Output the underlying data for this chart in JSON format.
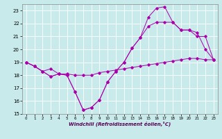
{
  "xlabel": "Windchill (Refroidissement éolien,°C)",
  "bg_color": "#c8eaea",
  "line_color": "#aa00aa",
  "grid_color": "#ffffff",
  "xlim": [
    -0.5,
    23.5
  ],
  "ylim": [
    15,
    23.5
  ],
  "yticks": [
    15,
    16,
    17,
    18,
    19,
    20,
    21,
    22,
    23
  ],
  "xticks": [
    0,
    1,
    2,
    3,
    4,
    5,
    6,
    7,
    8,
    9,
    10,
    11,
    12,
    13,
    14,
    15,
    16,
    17,
    18,
    19,
    20,
    21,
    22,
    23
  ],
  "line1_x": [
    0,
    1,
    2,
    3,
    4,
    5,
    6,
    7,
    8,
    9,
    10,
    11,
    12,
    13,
    14,
    15,
    16,
    17,
    18,
    19,
    20,
    21,
    22,
    23
  ],
  "line1_y": [
    19.0,
    18.7,
    18.3,
    18.5,
    18.1,
    18.1,
    18.0,
    18.0,
    18.0,
    18.2,
    18.3,
    18.4,
    18.5,
    18.6,
    18.7,
    18.8,
    18.9,
    19.0,
    19.1,
    19.2,
    19.3,
    19.3,
    19.2,
    19.2
  ],
  "line2_x": [
    0,
    1,
    2,
    3,
    4,
    5,
    6,
    7,
    8,
    9,
    10,
    11,
    12,
    13,
    14,
    15,
    16,
    17,
    18,
    19,
    20,
    21,
    22,
    23
  ],
  "line2_y": [
    19.0,
    18.7,
    18.3,
    17.9,
    18.1,
    18.0,
    16.7,
    15.3,
    15.5,
    16.1,
    17.5,
    18.3,
    19.0,
    20.1,
    20.9,
    22.5,
    23.2,
    23.3,
    22.1,
    21.5,
    21.5,
    21.0,
    21.0,
    19.2
  ],
  "line3_x": [
    0,
    1,
    2,
    3,
    4,
    5,
    6,
    7,
    8,
    9,
    10,
    11,
    12,
    13,
    14,
    15,
    16,
    17,
    18,
    19,
    20,
    21,
    22,
    23
  ],
  "line3_y": [
    19.0,
    18.7,
    18.3,
    17.9,
    18.1,
    18.0,
    16.7,
    15.3,
    15.5,
    16.1,
    17.5,
    18.3,
    19.0,
    20.1,
    20.9,
    21.8,
    22.1,
    22.1,
    22.1,
    21.5,
    21.5,
    21.3,
    20.0,
    19.2
  ]
}
